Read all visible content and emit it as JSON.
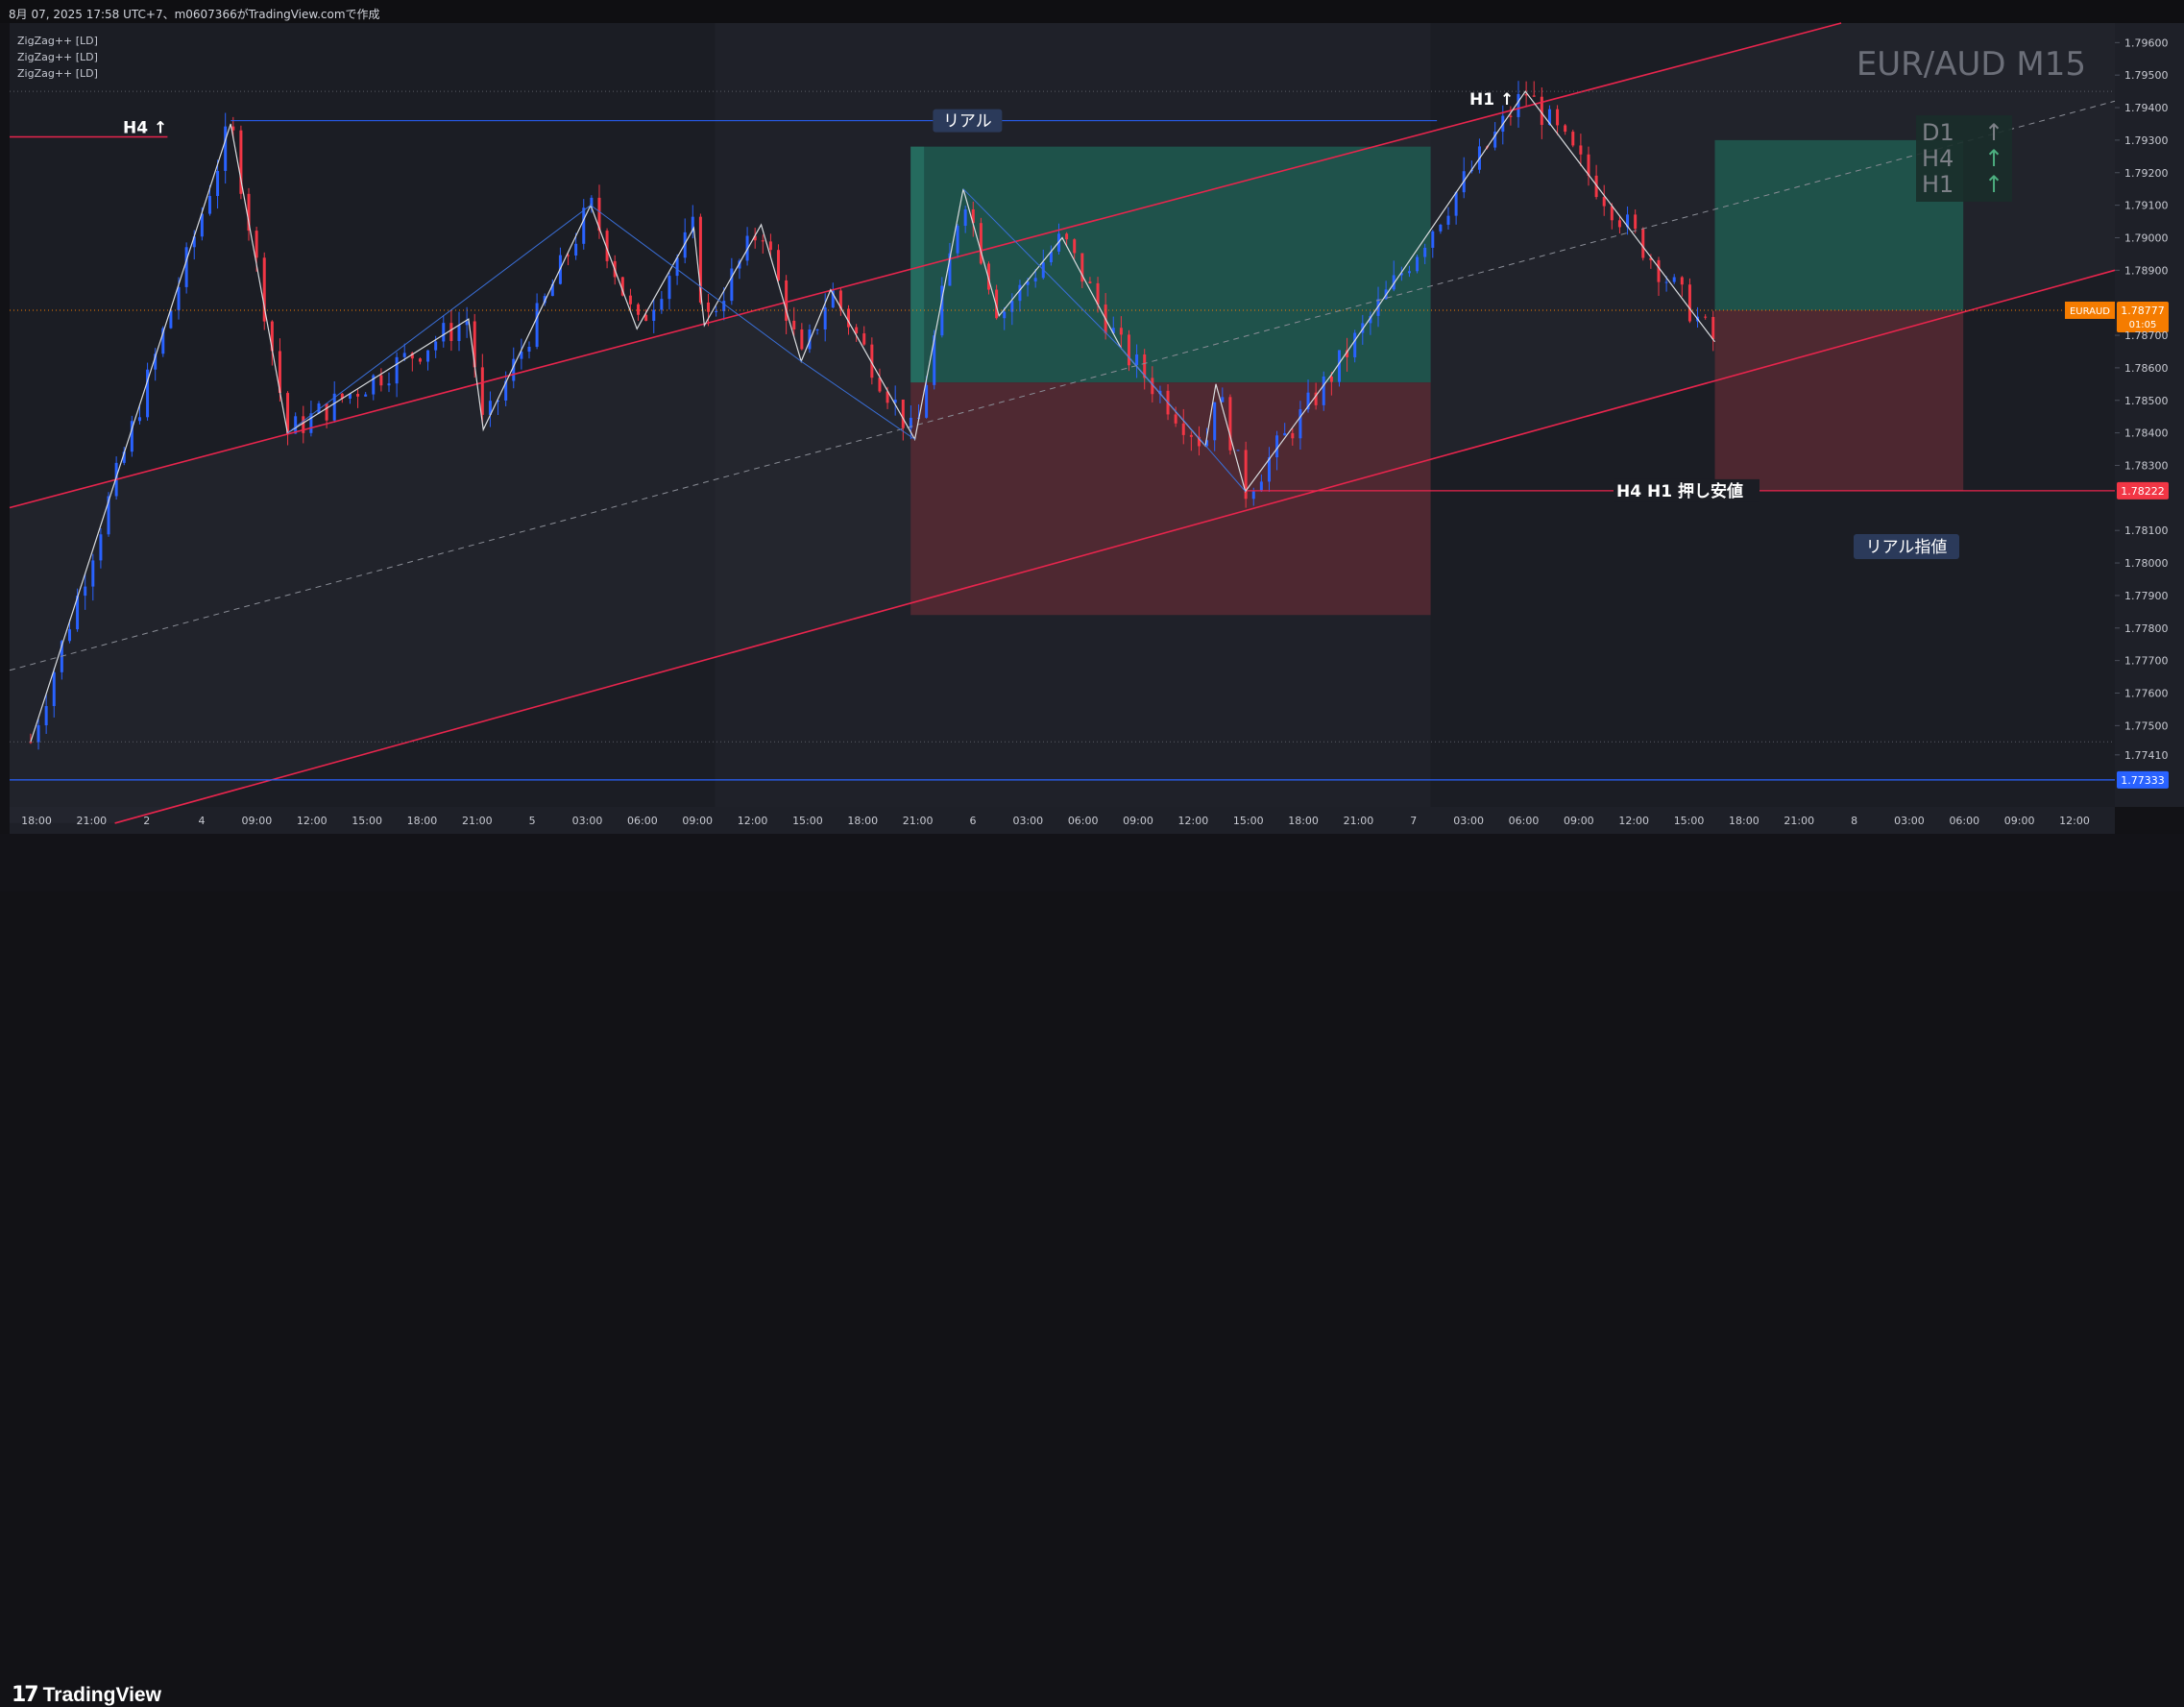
{
  "header": {
    "text": "8月 07, 2025 17:58 UTC+7、m0607366がTradingView.comで作成"
  },
  "indicators": [
    "ZigZag++ [LD]",
    "ZigZag++ [LD]",
    "ZigZag++ [LD]"
  ],
  "watermark": "EUR/AUD M15",
  "footer": {
    "logo_mark": "17",
    "logo_text": "TradingView"
  },
  "colors": {
    "background": "#1f2129",
    "candle_up": "#2962ff",
    "candle_down": "#f23645",
    "channel": "#f23645",
    "zigzag": "#d9dcdf",
    "tp_zone": "#1e5a50",
    "sl_zone": "#5a2a33"
  },
  "chart_data": {
    "type": "candlestick",
    "symbol": "EUR/AUD",
    "timeframe": "M15",
    "title": "EUR/AUD M15",
    "y_axis": {
      "ticks": [
        "1.79600",
        "1.79500",
        "1.79400",
        "1.79300",
        "1.79200",
        "1.79100",
        "1.79000",
        "1.78900",
        "1.78700",
        "1.78600",
        "1.78500",
        "1.78400",
        "1.78300",
        "1.78100",
        "1.78000",
        "1.77900",
        "1.77800",
        "1.77700",
        "1.77600",
        "1.77500",
        "1.77410"
      ],
      "ylim": [
        1.7725,
        1.7966
      ]
    },
    "x_axis": {
      "ticks": [
        "18:00",
        "21:00",
        "2",
        "4",
        "09:00",
        "12:00",
        "15:00",
        "18:00",
        "21:00",
        "5",
        "03:00",
        "06:00",
        "09:00",
        "12:00",
        "15:00",
        "18:00",
        "21:00",
        "6",
        "03:00",
        "06:00",
        "09:00",
        "12:00",
        "15:00",
        "18:00",
        "21:00",
        "7",
        "03:00",
        "06:00",
        "09:00",
        "12:00",
        "15:00",
        "18:00",
        "21:00",
        "8",
        "03:00",
        "06:00",
        "09:00",
        "12:00"
      ]
    },
    "price_tags": [
      {
        "label": "EURAUD",
        "value": "1.78777",
        "countdown": "01:05",
        "color": "#f57c00"
      },
      {
        "label": "",
        "value": "1.78222",
        "color": "#f23645"
      },
      {
        "label": "",
        "value": "1.77333",
        "color": "#2962ff"
      }
    ],
    "current_price": 1.78777,
    "levels": [
      {
        "name": "H4 H1 押し安値",
        "value": 1.78222,
        "color": "#f23645"
      },
      {
        "name": "",
        "value": 1.77333,
        "color": "#2962ff"
      },
      {
        "name": "リアル",
        "value": 1.7936,
        "color": "#2962ff"
      }
    ],
    "annotations": [
      "H4 ↑",
      "H1 ↑",
      "リアル",
      "H4 H1 押し安値",
      "リアル指値"
    ],
    "mtf_table": [
      {
        "tf": "D1",
        "dir": "↑"
      },
      {
        "tf": "H4",
        "dir": "↑"
      },
      {
        "tf": "H1",
        "dir": "↑"
      }
    ],
    "zigzag_points": [
      {
        "x": 0.01,
        "y": 1.7745
      },
      {
        "x": 0.105,
        "y": 1.7935
      },
      {
        "x": 0.132,
        "y": 1.784
      },
      {
        "x": 0.218,
        "y": 1.7875
      },
      {
        "x": 0.225,
        "y": 1.7841
      },
      {
        "x": 0.276,
        "y": 1.791
      },
      {
        "x": 0.298,
        "y": 1.7872
      },
      {
        "x": 0.325,
        "y": 1.7903
      },
      {
        "x": 0.33,
        "y": 1.7873
      },
      {
        "x": 0.357,
        "y": 1.7904
      },
      {
        "x": 0.376,
        "y": 1.7862
      },
      {
        "x": 0.39,
        "y": 1.7884
      },
      {
        "x": 0.43,
        "y": 1.7838
      },
      {
        "x": 0.453,
        "y": 1.7915
      },
      {
        "x": 0.47,
        "y": 1.7876
      },
      {
        "x": 0.5,
        "y": 1.79
      },
      {
        "x": 0.528,
        "y": 1.7866
      },
      {
        "x": 0.568,
        "y": 1.7836
      },
      {
        "x": 0.573,
        "y": 1.7855
      },
      {
        "x": 0.587,
        "y": 1.7822
      },
      {
        "x": 0.628,
        "y": 1.7858
      },
      {
        "x": 0.72,
        "y": 1.7945
      },
      {
        "x": 0.81,
        "y": 1.7868
      }
    ],
    "channel_lines": [
      {
        "x1": 0.0,
        "y1": 1.7817,
        "x2": 0.87,
        "y2": 1.7966
      },
      {
        "x1": 0.05,
        "y1": 1.772,
        "x2": 1.0,
        "y2": 1.789
      },
      {
        "x1": 0.0,
        "y1": 1.7767,
        "x2": 1.0,
        "y2": 1.7942
      }
    ],
    "positions": [
      {
        "entry": 1.78555,
        "tp": 1.7928,
        "sl": 1.7784,
        "x_start": 0.428,
        "x_end": 0.675
      },
      {
        "entry": 1.78777,
        "tp": 1.793,
        "sl": 1.78222,
        "x_start": 0.81,
        "x_end": 0.928
      }
    ]
  }
}
